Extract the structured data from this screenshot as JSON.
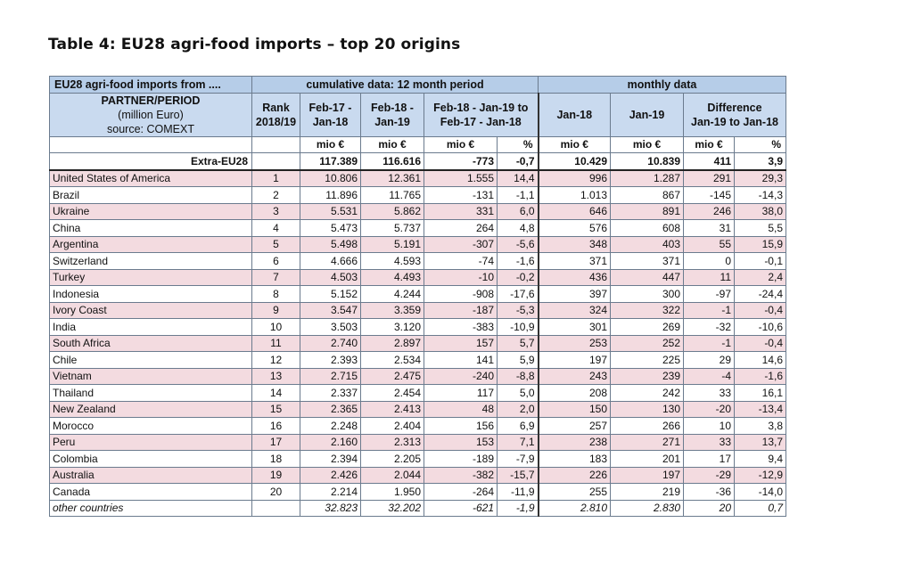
{
  "title": "Table 4: EU28 agri-food imports – top 20 origins",
  "header": {
    "row1": {
      "label": "EU28 agri-food imports from ....",
      "cumulative": "cumulative data: 12 month period",
      "monthly": "monthly data"
    },
    "row2": {
      "partner_line1": "PARTNER/PERIOD",
      "partner_line2": "(million Euro)",
      "partner_line3": "source: COMEXT",
      "rank_line1": "Rank",
      "rank_line2": "2018/19",
      "col_a_line1": "Feb-17 -",
      "col_a_line2": "Jan-18",
      "col_b_line1": "Feb-18 -",
      "col_b_line2": "Jan-19",
      "col_c_line1": "Feb-18 - Jan-19 to",
      "col_c_line2": "Feb-17 - Jan-18",
      "col_d": "Jan-18",
      "col_e": "Jan-19",
      "col_f_line1": "Difference",
      "col_f_line2": "Jan-19 to Jan-18"
    },
    "units": [
      "mio €",
      "mio €",
      "mio €",
      "%",
      "mio €",
      "mio €",
      "mio €",
      "%"
    ]
  },
  "total": {
    "name": "Extra-EU28",
    "values": [
      "117.389",
      "116.616",
      "-773",
      "-0,7",
      "10.429",
      "10.839",
      "411",
      "3,9"
    ]
  },
  "rows": [
    {
      "name": "United States of America",
      "rank": "1",
      "values": [
        "10.806",
        "12.361",
        "1.555",
        "14,4",
        "996",
        "1.287",
        "291",
        "29,3"
      ]
    },
    {
      "name": "Brazil",
      "rank": "2",
      "values": [
        "11.896",
        "11.765",
        "-131",
        "-1,1",
        "1.013",
        "867",
        "-145",
        "-14,3"
      ]
    },
    {
      "name": "Ukraine",
      "rank": "3",
      "values": [
        "5.531",
        "5.862",
        "331",
        "6,0",
        "646",
        "891",
        "246",
        "38,0"
      ]
    },
    {
      "name": "China",
      "rank": "4",
      "values": [
        "5.473",
        "5.737",
        "264",
        "4,8",
        "576",
        "608",
        "31",
        "5,5"
      ]
    },
    {
      "name": "Argentina",
      "rank": "5",
      "values": [
        "5.498",
        "5.191",
        "-307",
        "-5,6",
        "348",
        "403",
        "55",
        "15,9"
      ]
    },
    {
      "name": "Switzerland",
      "rank": "6",
      "values": [
        "4.666",
        "4.593",
        "-74",
        "-1,6",
        "371",
        "371",
        "0",
        "-0,1"
      ]
    },
    {
      "name": "Turkey",
      "rank": "7",
      "values": [
        "4.503",
        "4.493",
        "-10",
        "-0,2",
        "436",
        "447",
        "11",
        "2,4"
      ]
    },
    {
      "name": "Indonesia",
      "rank": "8",
      "values": [
        "5.152",
        "4.244",
        "-908",
        "-17,6",
        "397",
        "300",
        "-97",
        "-24,4"
      ]
    },
    {
      "name": "Ivory Coast",
      "rank": "9",
      "values": [
        "3.547",
        "3.359",
        "-187",
        "-5,3",
        "324",
        "322",
        "-1",
        "-0,4"
      ]
    },
    {
      "name": "India",
      "rank": "10",
      "values": [
        "3.503",
        "3.120",
        "-383",
        "-10,9",
        "301",
        "269",
        "-32",
        "-10,6"
      ]
    },
    {
      "name": "South Africa",
      "rank": "11",
      "values": [
        "2.740",
        "2.897",
        "157",
        "5,7",
        "253",
        "252",
        "-1",
        "-0,4"
      ]
    },
    {
      "name": "Chile",
      "rank": "12",
      "values": [
        "2.393",
        "2.534",
        "141",
        "5,9",
        "197",
        "225",
        "29",
        "14,6"
      ]
    },
    {
      "name": "Vietnam",
      "rank": "13",
      "values": [
        "2.715",
        "2.475",
        "-240",
        "-8,8",
        "243",
        "239",
        "-4",
        "-1,6"
      ]
    },
    {
      "name": "Thailand",
      "rank": "14",
      "values": [
        "2.337",
        "2.454",
        "117",
        "5,0",
        "208",
        "242",
        "33",
        "16,1"
      ]
    },
    {
      "name": "New Zealand",
      "rank": "15",
      "values": [
        "2.365",
        "2.413",
        "48",
        "2,0",
        "150",
        "130",
        "-20",
        "-13,4"
      ]
    },
    {
      "name": "Morocco",
      "rank": "16",
      "values": [
        "2.248",
        "2.404",
        "156",
        "6,9",
        "257",
        "266",
        "10",
        "3,8"
      ]
    },
    {
      "name": "Peru",
      "rank": "17",
      "values": [
        "2.160",
        "2.313",
        "153",
        "7,1",
        "238",
        "271",
        "33",
        "13,7"
      ]
    },
    {
      "name": "Colombia",
      "rank": "18",
      "values": [
        "2.394",
        "2.205",
        "-189",
        "-7,9",
        "183",
        "201",
        "17",
        "9,4"
      ]
    },
    {
      "name": "Australia",
      "rank": "19",
      "values": [
        "2.426",
        "2.044",
        "-382",
        "-15,7",
        "226",
        "197",
        "-29",
        "-12,9"
      ]
    },
    {
      "name": "Canada",
      "rank": "20",
      "values": [
        "2.214",
        "1.950",
        "-264",
        "-11,9",
        "255",
        "219",
        "-36",
        "-14,0"
      ]
    }
  ],
  "other": {
    "name": "other countries",
    "values": [
      "32.823",
      "32.202",
      "-621",
      "-1,9",
      "2.810",
      "2.830",
      "20",
      "0,7"
    ]
  }
}
